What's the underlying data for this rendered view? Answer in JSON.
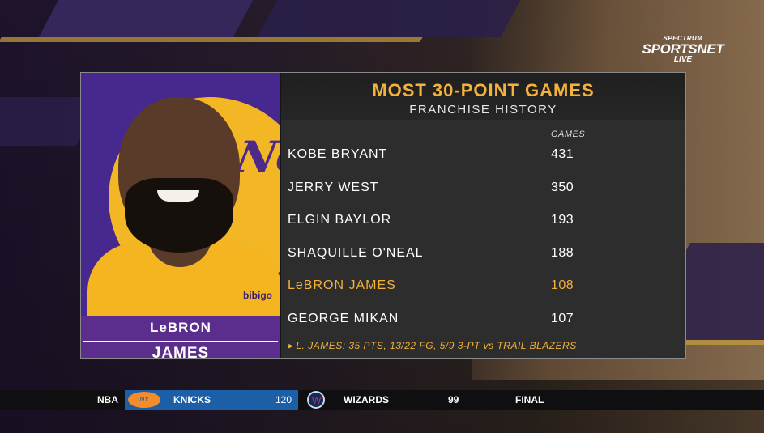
{
  "broadcast": {
    "network_line1": "SPECTRUM",
    "network_line2": "SPORTSNET",
    "network_line3": "LIVE"
  },
  "graphic": {
    "title": "MOST 30-POINT GAMES",
    "subtitle": "FRANCHISE HISTORY",
    "column_header": "GAMES",
    "player_first": "LeBRON",
    "player_last": "JAMES",
    "photo_brand_text": "bibigo",
    "photo_lettering": "ANG",
    "rows": [
      {
        "name": "KOBE BRYANT",
        "games": "431"
      },
      {
        "name": "JERRY WEST",
        "games": "350"
      },
      {
        "name": "ELGIN BAYLOR",
        "games": "193"
      },
      {
        "name": "SHAQUILLE O'NEAL",
        "games": "188"
      },
      {
        "name": "LeBRON JAMES",
        "games": "108"
      },
      {
        "name": "GEORGE MIKAN",
        "games": "107"
      }
    ],
    "highlight_row": 4,
    "footnote": "▸ L. JAMES: 35 PTS, 13/22 FG, 5/9 3-PT vs TRAIL BLAZERS",
    "accent_color": "#f3b23b"
  },
  "ticker": {
    "league": "NBA",
    "team1_name": "KNICKS",
    "team1_score": "120",
    "team1_logo_text": "NY",
    "team2_name": "WIZARDS",
    "team2_score": "99",
    "status": "FINAL"
  }
}
